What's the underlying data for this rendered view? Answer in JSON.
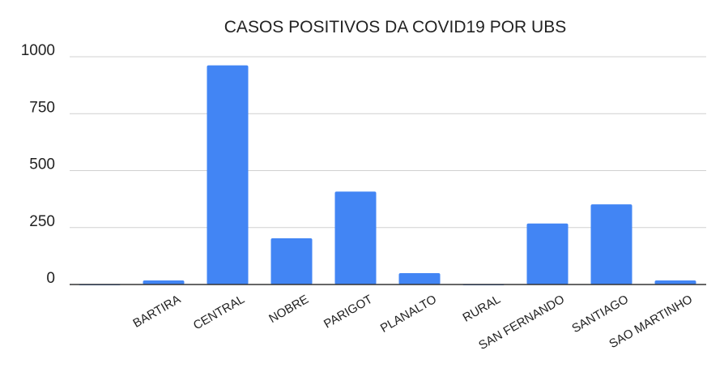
{
  "chart_data": {
    "type": "bar",
    "title": "CASOS POSITIVOS DA COVID19 POR UBS",
    "xlabel": "",
    "ylabel": "",
    "categories": [
      "",
      "BARTIRA",
      "CENTRAL",
      "NOBRE",
      "PARIGOT",
      "PLANALTO",
      "RURAL",
      "SAN FERNANDO",
      "SANTIAGO",
      "SAO MARTINHO"
    ],
    "series": [
      {
        "values": [
          2,
          18,
          962,
          203,
          408,
          50,
          2,
          268,
          352,
          18
        ]
      }
    ],
    "ylim": [
      0,
      1000
    ],
    "yticks": [
      "0",
      "250",
      "500",
      "750",
      "1000"
    ],
    "grid": true,
    "legend": "none",
    "bar_color": "#4285f4"
  }
}
